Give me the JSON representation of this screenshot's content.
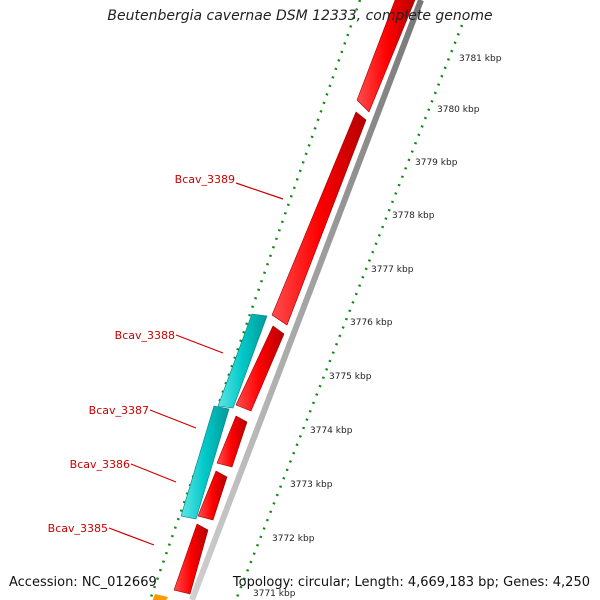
{
  "title": "Beutenbergia cavernae DSM 12333, complete genome",
  "footer": {
    "accession": "Accession: NC_012669",
    "summary": "Topology: circular; Length: 4,669,183 bp; Genes: 4,250"
  },
  "gene_labels": [
    "Bcav_3389",
    "Bcav_3388",
    "Bcav_3387",
    "Bcav_3386",
    "Bcav_3385"
  ],
  "scale_ticks": [
    "3781 kbp",
    "3780 kbp",
    "3779 kbp",
    "3778 kbp",
    "3777 kbp",
    "3776 kbp",
    "3775 kbp",
    "3774 kbp",
    "3773 kbp",
    "3772 kbp",
    "3771 kbp"
  ],
  "colors": {
    "forward_gene": "#ff0000",
    "reverse_gene": "#00c8c8",
    "backbone": "#8c8c8c",
    "ruler": "#118a11",
    "label_text": "#cc0000",
    "partial_gene": "#ff9900"
  }
}
